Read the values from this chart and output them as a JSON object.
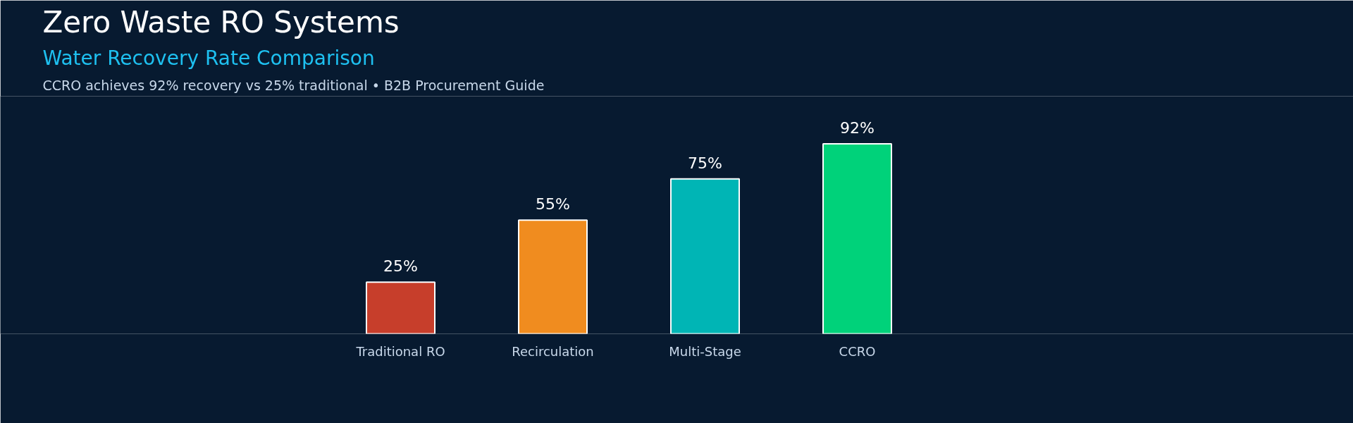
{
  "chart_data": {
    "type": "bar",
    "title": "Zero Waste RO Systems",
    "subtitle": "Water Recovery Rate Comparison",
    "annotations": [
      "CCRO achieves 92% recovery vs 25% traditional • B2B Procurement Guide"
    ],
    "categories": [
      "Traditional RO",
      "Recirculation",
      "Multi-Stage",
      "CCRO"
    ],
    "values": [
      25,
      55,
      75,
      92
    ],
    "colors": [
      "#c73e2b",
      "#f08c1f",
      "#00b5b5",
      "#00d27a"
    ],
    "value_labels": [
      "25%",
      "55%",
      "75%",
      "92%"
    ],
    "ylim": [
      0,
      115
    ],
    "grid": false
  }
}
